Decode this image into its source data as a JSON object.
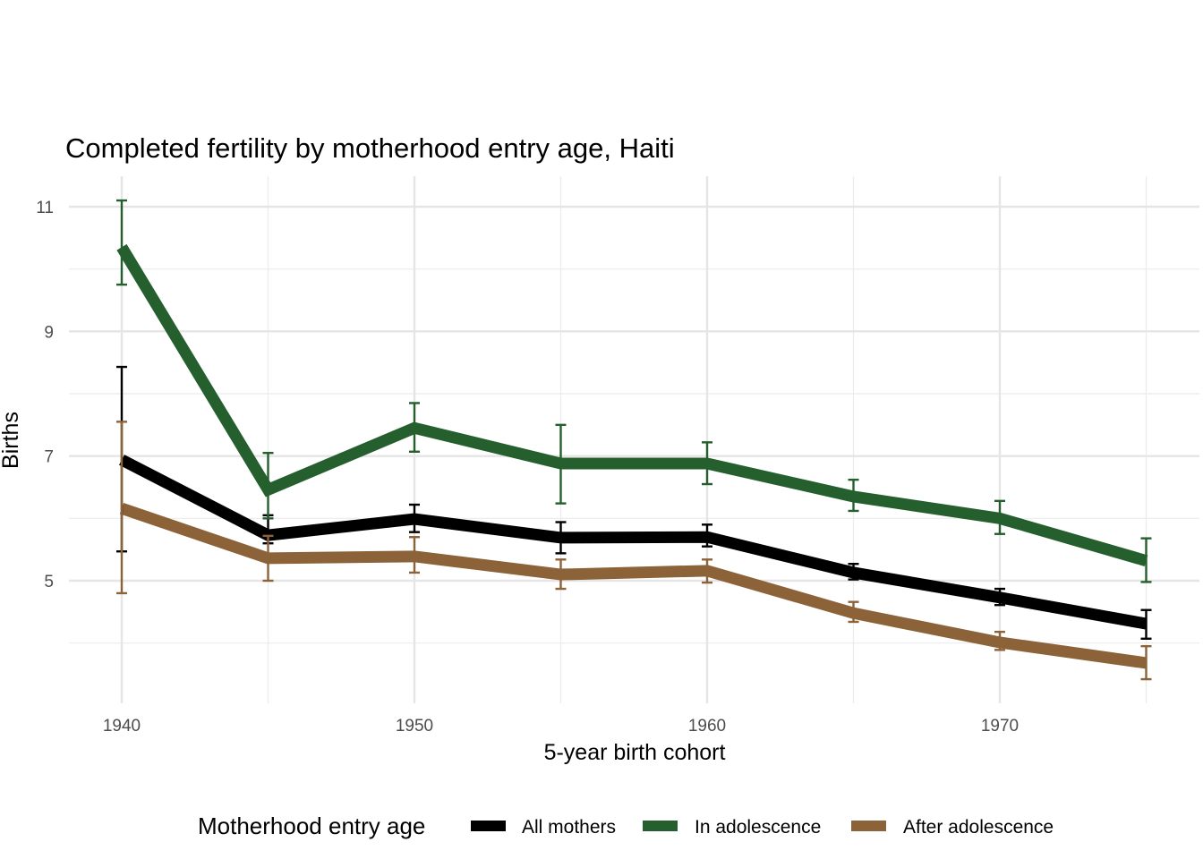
{
  "chart_data": {
    "type": "line",
    "title": "Completed fertility by motherhood entry age,  Haiti",
    "xlabel": "5-year birth cohort",
    "ylabel": "Births",
    "x": [
      1940,
      1945,
      1950,
      1955,
      1960,
      1965,
      1970,
      1975
    ],
    "xticks": [
      1940,
      1950,
      1960,
      1970
    ],
    "xtick_labels": [
      "1940",
      "1950",
      "1960",
      "1970"
    ],
    "yticks": [
      5,
      7,
      9,
      11
    ],
    "ytick_labels": [
      "5",
      "7",
      "9",
      "11"
    ],
    "xlim": [
      1938,
      1977
    ],
    "ylim": [
      3.05,
      11.35
    ],
    "grid": true,
    "legend": {
      "title": "Motherhood entry age",
      "position": "bottom"
    },
    "series": [
      {
        "name": "All mothers",
        "color": "#000000",
        "values": [
          6.94,
          5.73,
          5.99,
          5.69,
          5.7,
          5.13,
          4.73,
          4.31
        ],
        "lower": [
          5.47,
          5.6,
          5.78,
          5.44,
          5.55,
          5.02,
          4.61,
          4.07
        ],
        "upper": [
          8.43,
          6.05,
          6.22,
          5.94,
          5.9,
          5.27,
          4.87,
          4.53
        ]
      },
      {
        "name": "In adolescence",
        "color": "#245f2d",
        "values": [
          10.35,
          6.46,
          7.45,
          6.88,
          6.88,
          6.35,
          6.0,
          5.32
        ],
        "lower": [
          9.75,
          6.0,
          7.07,
          6.24,
          6.55,
          6.12,
          5.75,
          4.98
        ],
        "upper": [
          11.1,
          7.05,
          7.85,
          7.5,
          7.22,
          6.62,
          6.28,
          5.68
        ]
      },
      {
        "name": "After adolescence",
        "color": "#8c6239",
        "values": [
          6.16,
          5.36,
          5.39,
          5.1,
          5.16,
          4.48,
          4.01,
          3.68
        ],
        "lower": [
          4.8,
          5.0,
          5.13,
          4.87,
          4.97,
          4.34,
          3.89,
          3.42
        ],
        "upper": [
          7.55,
          5.72,
          5.7,
          5.34,
          5.34,
          4.66,
          4.18,
          3.95
        ]
      }
    ]
  }
}
